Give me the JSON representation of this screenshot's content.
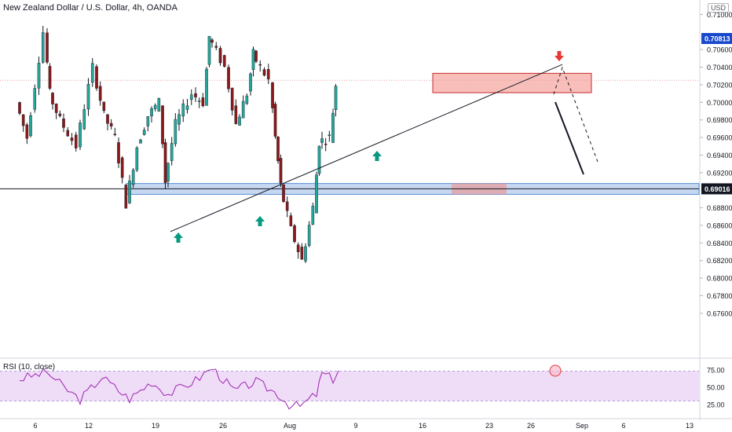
{
  "header": {
    "title": "New Zealand Dollar / U.S. Dollar, 4h, OANDA",
    "currency": "USD"
  },
  "colors": {
    "up": "#26a69a",
    "down": "#ef5350",
    "candle_body_up": "#26a69a",
    "candle_body_down": "#8b1a1a",
    "support_zone": "#5b8fd6",
    "resistance_zone": "#f28b82",
    "rsi_line": "#9c27b0",
    "rsi_band": "#efdcf7",
    "current_price_tag": "#1848cc",
    "level_tag": "#131722"
  },
  "chart_data": [
    {
      "type": "candlestick",
      "title": "New Zealand Dollar / U.S. Dollar, 4h, OANDA",
      "ylim": [
        0.675,
        0.7115
      ],
      "y_ticks": [
        "0.71000",
        "0.70600",
        "0.70400",
        "0.70200",
        "0.70000",
        "0.69800",
        "0.69600",
        "0.69400",
        "0.69200",
        "0.68800",
        "0.68600",
        "0.68400",
        "0.68200",
        "0.68000",
        "0.67800",
        "0.67600"
      ],
      "x_ticks": [
        "6",
        "12",
        "19",
        "26",
        "Aug",
        "9",
        "16",
        "23",
        "26",
        "Sep",
        "6",
        "13"
      ],
      "price_tags": {
        "current": "0.70813",
        "level": "0.69016"
      },
      "current_price": 0.70813,
      "support_level": 0.69016,
      "approx_close_path": [
        {
          "date": "Jul 1",
          "close": 0.7
        },
        {
          "date": "Jul 3",
          "close": 0.696
        },
        {
          "date": "Jul 6",
          "close": 0.708
        },
        {
          "date": "Jul 7",
          "close": 0.701
        },
        {
          "date": "Jul 9",
          "close": 0.698
        },
        {
          "date": "Jul 12",
          "close": 0.695
        },
        {
          "date": "Jul 15",
          "close": 0.704
        },
        {
          "date": "Jul 17",
          "close": 0.6985
        },
        {
          "date": "Jul 19",
          "close": 0.696
        },
        {
          "date": "Jul 21",
          "close": 0.6885
        },
        {
          "date": "Jul 23",
          "close": 0.695
        },
        {
          "date": "Jul 25",
          "close": 0.6985
        },
        {
          "date": "Jul 27",
          "close": 0.7
        },
        {
          "date": "Jul 28",
          "close": 0.691
        },
        {
          "date": "Jul 30",
          "close": 0.6975
        },
        {
          "date": "Aug 2",
          "close": 0.701
        },
        {
          "date": "Aug 4",
          "close": 0.7
        },
        {
          "date": "Aug 5",
          "close": 0.7075
        },
        {
          "date": "Aug 8",
          "close": 0.704
        },
        {
          "date": "Aug 10",
          "close": 0.6975
        },
        {
          "date": "Aug 12",
          "close": 0.701
        },
        {
          "date": "Aug 13",
          "close": 0.7055
        },
        {
          "date": "Aug 16",
          "close": 0.7025
        },
        {
          "date": "Aug 17",
          "close": 0.696
        },
        {
          "date": "Aug 18",
          "close": 0.6905
        },
        {
          "date": "Aug 20",
          "close": 0.6855
        },
        {
          "date": "Aug 22",
          "close": 0.682
        },
        {
          "date": "Aug 24",
          "close": 0.688
        },
        {
          "date": "Aug 25",
          "close": 0.6955
        },
        {
          "date": "Aug 27",
          "close": 0.696
        },
        {
          "date": "Aug 28",
          "close": 0.702
        }
      ],
      "annotations": {
        "support_zone": {
          "low": 0.6898,
          "high": 0.6905
        },
        "resistance_zone": {
          "low": 0.7011,
          "high": 0.7033
        },
        "trendline": [
          {
            "date": "Jul 21",
            "price": 0.6878
          },
          {
            "date": "Aug 31",
            "price": 0.7052
          }
        ],
        "projection_solid": [
          {
            "date": "Aug 28",
            "price": 0.7015
          },
          {
            "date": "Sep 1",
            "price": 0.694
          }
        ],
        "projection_dashed": [
          {
            "date": "Aug 28",
            "price": 0.7025
          },
          {
            "date": "Aug 31",
            "price": 0.7052
          },
          {
            "date": "Sep 2",
            "price": 0.6955
          }
        ],
        "up_arrows": [
          "Jul 21",
          "Jul 28",
          "Aug 10"
        ],
        "down_arrows": [
          "Aug 31"
        ]
      }
    },
    {
      "type": "line",
      "title": "RSI (10, close)",
      "ylim": [
        15,
        85
      ],
      "y_ticks": [
        "75.00",
        "50.00",
        "25.00"
      ],
      "band": [
        30,
        70
      ],
      "approx_path": [
        {
          "date": "Jul 1",
          "rsi": 62
        },
        {
          "date": "Jul 6",
          "rsi": 72
        },
        {
          "date": "Jul 9",
          "rsi": 50
        },
        {
          "date": "Jul 12",
          "rsi": 32
        },
        {
          "date": "Jul 16",
          "rsi": 65
        },
        {
          "date": "Jul 19",
          "rsi": 45
        },
        {
          "date": "Jul 21",
          "rsi": 33
        },
        {
          "date": "Jul 25",
          "rsi": 58
        },
        {
          "date": "Jul 28",
          "rsi": 40
        },
        {
          "date": "Aug 2",
          "rsi": 60
        },
        {
          "date": "Aug 5",
          "rsi": 78
        },
        {
          "date": "Aug 9",
          "rsi": 45
        },
        {
          "date": "Aug 13",
          "rsi": 58
        },
        {
          "date": "Aug 17",
          "rsi": 40
        },
        {
          "date": "Aug 19",
          "rsi": 25
        },
        {
          "date": "Aug 21",
          "rsi": 22
        },
        {
          "date": "Aug 24",
          "rsi": 40
        },
        {
          "date": "Aug 25",
          "rsi": 70
        },
        {
          "date": "Aug 27",
          "rsi": 62
        },
        {
          "date": "Aug 28",
          "rsi": 74
        }
      ]
    }
  ]
}
